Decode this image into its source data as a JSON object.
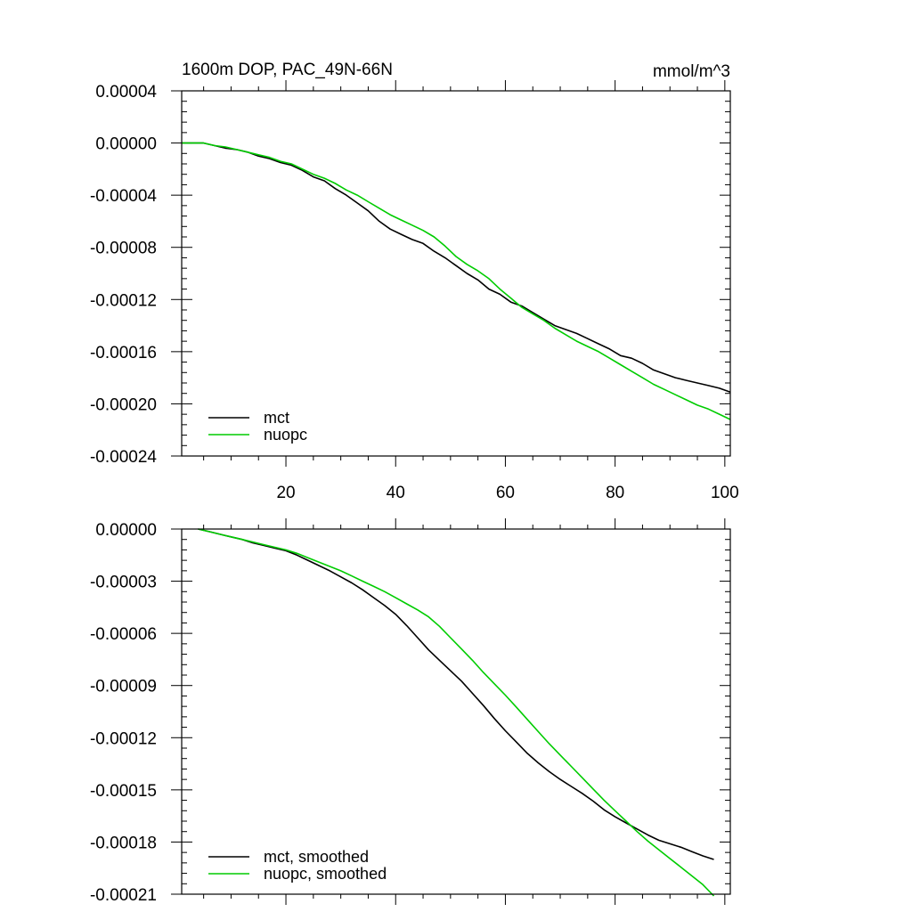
{
  "chart_data": [
    {
      "type": "line",
      "title": "1600m DOP, PAC_49N-66N",
      "units": "mmol/m^3",
      "xlim": [
        1,
        101
      ],
      "ylim": [
        -0.00024,
        4e-05
      ],
      "xticks": [
        20,
        40,
        60,
        80,
        100
      ],
      "xtick_labels": [
        "20",
        "40",
        "60",
        "80",
        "100"
      ],
      "yticks": [
        4e-05,
        0.0,
        -4e-05,
        -8e-05,
        -0.00012,
        -0.00016,
        -0.0002,
        -0.00024
      ],
      "ytick_labels": [
        "0.00004",
        "0.00000",
        "-0.00004",
        "-0.00008",
        "-0.00012",
        "-0.00016",
        "-0.00020",
        "-0.00024"
      ],
      "legend_position": "bottom-left",
      "series": [
        {
          "name": "mct",
          "color": "#000000",
          "x": [
            1,
            3,
            5,
            7,
            9,
            11,
            13,
            15,
            17,
            19,
            21,
            23,
            25,
            27,
            29,
            31,
            33,
            35,
            37,
            39,
            41,
            43,
            45,
            47,
            49,
            51,
            53,
            55,
            57,
            59,
            61,
            63,
            65,
            67,
            69,
            71,
            73,
            75,
            77,
            79,
            81,
            83,
            85,
            87,
            89,
            91,
            93,
            95,
            97,
            99,
            101
          ],
          "y": [
            0.0,
            0.0,
            0.0,
            -2e-06,
            -4e-06,
            -5e-06,
            -7e-06,
            -1e-05,
            -1.2e-05,
            -1.5e-05,
            -1.7e-05,
            -2.1e-05,
            -2.6e-05,
            -2.9e-05,
            -3.5e-05,
            -4e-05,
            -4.6e-05,
            -5.2e-05,
            -6e-05,
            -6.6e-05,
            -7e-05,
            -7.4e-05,
            -7.7e-05,
            -8.3e-05,
            -8.8e-05,
            -9.4e-05,
            -0.0001,
            -0.000105,
            -0.000112,
            -0.000116,
            -0.000122,
            -0.000125,
            -0.00013,
            -0.000135,
            -0.00014,
            -0.000143,
            -0.000146,
            -0.00015,
            -0.000154,
            -0.000158,
            -0.000163,
            -0.000165,
            -0.000169,
            -0.000174,
            -0.000177,
            -0.00018,
            -0.000182,
            -0.000184,
            -0.000186,
            -0.000188,
            -0.000191
          ]
        },
        {
          "name": "nuopc",
          "color": "#00cc00",
          "x": [
            1,
            3,
            5,
            7,
            9,
            11,
            13,
            15,
            17,
            19,
            21,
            23,
            25,
            27,
            29,
            31,
            33,
            35,
            37,
            39,
            41,
            43,
            45,
            47,
            49,
            51,
            53,
            55,
            57,
            59,
            61,
            63,
            65,
            67,
            69,
            71,
            73,
            75,
            77,
            79,
            81,
            83,
            85,
            87,
            89,
            91,
            93,
            95,
            97,
            99,
            101
          ],
          "y": [
            0.0,
            0.0,
            0.0,
            -2e-06,
            -3e-06,
            -5e-06,
            -7e-06,
            -9e-06,
            -1.1e-05,
            -1.4e-05,
            -1.6e-05,
            -2e-05,
            -2.4e-05,
            -2.7e-05,
            -3.1e-05,
            -3.6e-05,
            -4e-05,
            -4.5e-05,
            -5e-05,
            -5.5e-05,
            -5.9e-05,
            -6.3e-05,
            -6.7e-05,
            -7.2e-05,
            -7.9e-05,
            -8.7e-05,
            -9.3e-05,
            -9.8e-05,
            -0.000104,
            -0.000112,
            -0.000119,
            -0.000126,
            -0.000131,
            -0.000136,
            -0.000142,
            -0.000147,
            -0.000152,
            -0.000156,
            -0.00016,
            -0.000165,
            -0.00017,
            -0.000175,
            -0.00018,
            -0.000185,
            -0.000189,
            -0.000193,
            -0.000197,
            -0.000201,
            -0.000204,
            -0.000208,
            -0.000212
          ]
        }
      ]
    },
    {
      "type": "line",
      "xlim": [
        1,
        101
      ],
      "ylim": [
        -0.00021,
        0.0
      ],
      "xticks": [
        20,
        40,
        60,
        80,
        100
      ],
      "yticks": [
        0.0,
        -3e-05,
        -6e-05,
        -9e-05,
        -0.00012,
        -0.00015,
        -0.00018,
        -0.00021
      ],
      "ytick_labels": [
        "0.00000",
        "-0.00003",
        "-0.00006",
        "-0.00009",
        "-0.00012",
        "-0.00015",
        "-0.00018",
        "-0.00021"
      ],
      "legend_position": "bottom-left",
      "series": [
        {
          "name": "mct, smoothed",
          "color": "#000000",
          "x": [
            4,
            6,
            8,
            10,
            12,
            14,
            16,
            18,
            20,
            22,
            24,
            26,
            28,
            30,
            32,
            34,
            36,
            38,
            40,
            42,
            44,
            46,
            48,
            50,
            52,
            54,
            56,
            58,
            60,
            62,
            64,
            66,
            68,
            70,
            72,
            74,
            76,
            78,
            80,
            82,
            84,
            86,
            88,
            90,
            92,
            94,
            96,
            98
          ],
          "y": [
            0.0,
            -1.5e-06,
            -3e-06,
            -4.5e-06,
            -6e-06,
            -8e-06,
            -9.5e-06,
            -1.1e-05,
            -1.25e-05,
            -1.5e-05,
            -1.8e-05,
            -2.1e-05,
            -2.4e-05,
            -2.75e-05,
            -3.1e-05,
            -3.5e-05,
            -3.95e-05,
            -4.4e-05,
            -4.9e-05,
            -5.55e-05,
            -6.25e-05,
            -6.95e-05,
            -7.55e-05,
            -8.15e-05,
            -8.75e-05,
            -9.45e-05,
            -0.0001015,
            -0.000109,
            -0.000116,
            -0.0001225,
            -0.000129,
            -0.0001345,
            -0.0001395,
            -0.000144,
            -0.000148,
            -0.000152,
            -0.0001565,
            -0.0001615,
            -0.0001655,
            -0.000169,
            -0.0001725,
            -0.000176,
            -0.000179,
            -0.000181,
            -0.000183,
            -0.0001855,
            -0.000188,
            -0.00019
          ]
        },
        {
          "name": "nuopc, smoothed",
          "color": "#00cc00",
          "x": [
            4,
            6,
            8,
            10,
            12,
            14,
            16,
            18,
            20,
            22,
            24,
            26,
            28,
            30,
            32,
            34,
            36,
            38,
            40,
            42,
            44,
            46,
            48,
            50,
            52,
            54,
            56,
            58,
            60,
            62,
            64,
            66,
            68,
            70,
            72,
            74,
            76,
            78,
            80,
            82,
            84,
            86,
            88,
            90,
            92,
            94,
            96,
            98
          ],
          "y": [
            0.0,
            -1.5e-06,
            -3e-06,
            -4.5e-06,
            -6e-06,
            -7.5e-06,
            -9e-06,
            -1.05e-05,
            -1.2e-05,
            -1.4e-05,
            -1.65e-05,
            -1.9e-05,
            -2.15e-05,
            -2.4e-05,
            -2.7e-05,
            -3e-05,
            -3.3e-05,
            -3.6e-05,
            -3.95e-05,
            -4.3e-05,
            -4.65e-05,
            -5.05e-05,
            -5.6e-05,
            -6.25e-05,
            -6.9e-05,
            -7.55e-05,
            -8.25e-05,
            -8.9e-05,
            -9.55e-05,
            -0.0001025,
            -0.0001095,
            -0.0001165,
            -0.0001235,
            -0.00013,
            -0.0001365,
            -0.000143,
            -0.0001495,
            -0.000156,
            -0.000162,
            -0.000168,
            -0.000174,
            -0.0001795,
            -0.0001845,
            -0.0001895,
            -0.0001945,
            -0.0001995,
            -0.0002045,
            -0.000211
          ]
        }
      ]
    }
  ]
}
